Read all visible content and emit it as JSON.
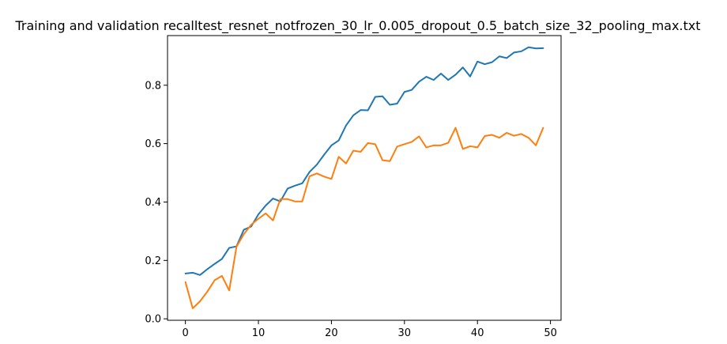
{
  "chart_data": {
    "type": "line",
    "title": "Training and validation recalltest_resnet_notfrozen_30_lr_0.005_dropout_0.5_batch_size_32_pooling_max.txt",
    "xlabel": "",
    "ylabel": "",
    "xlim": [
      -2.45,
      51.45
    ],
    "ylim": [
      -0.005,
      0.97
    ],
    "x_ticks": [
      0,
      10,
      20,
      30,
      40,
      50
    ],
    "y_ticks": [
      0.0,
      0.2,
      0.4,
      0.6,
      0.8
    ],
    "y_tick_labels": [
      "0.0",
      "0.2",
      "0.4",
      "0.6",
      "0.8"
    ],
    "grid": false,
    "legend": "none",
    "x": [
      0,
      1,
      2,
      3,
      4,
      5,
      6,
      7,
      8,
      9,
      10,
      11,
      12,
      13,
      14,
      15,
      16,
      17,
      18,
      19,
      20,
      21,
      22,
      23,
      24,
      25,
      26,
      27,
      28,
      29,
      30,
      31,
      32,
      33,
      34,
      35,
      36,
      37,
      38,
      39,
      40,
      41,
      42,
      43,
      44,
      45,
      46,
      47,
      48,
      49
    ],
    "series": [
      {
        "color": "#1f77b4",
        "values": [
          0.155,
          0.158,
          0.15,
          0.17,
          0.188,
          0.205,
          0.243,
          0.248,
          0.305,
          0.316,
          0.358,
          0.388,
          0.412,
          0.402,
          0.446,
          0.456,
          0.464,
          0.503,
          0.528,
          0.562,
          0.594,
          0.611,
          0.662,
          0.697,
          0.715,
          0.714,
          0.76,
          0.762,
          0.733,
          0.737,
          0.777,
          0.784,
          0.812,
          0.829,
          0.818,
          0.84,
          0.818,
          0.836,
          0.861,
          0.83,
          0.881,
          0.872,
          0.879,
          0.899,
          0.893,
          0.912,
          0.916,
          0.93,
          0.926,
          0.927
        ]
      },
      {
        "color": "#ff7f0e",
        "values": [
          0.126,
          0.036,
          0.06,
          0.093,
          0.132,
          0.147,
          0.097,
          0.247,
          0.29,
          0.322,
          0.343,
          0.361,
          0.337,
          0.41,
          0.41,
          0.402,
          0.402,
          0.488,
          0.498,
          0.487,
          0.479,
          0.555,
          0.532,
          0.576,
          0.572,
          0.602,
          0.598,
          0.543,
          0.54,
          0.59,
          0.598,
          0.606,
          0.625,
          0.587,
          0.594,
          0.594,
          0.603,
          0.654,
          0.582,
          0.591,
          0.587,
          0.626,
          0.63,
          0.62,
          0.637,
          0.627,
          0.633,
          0.62,
          0.594,
          0.654
        ]
      }
    ]
  }
}
